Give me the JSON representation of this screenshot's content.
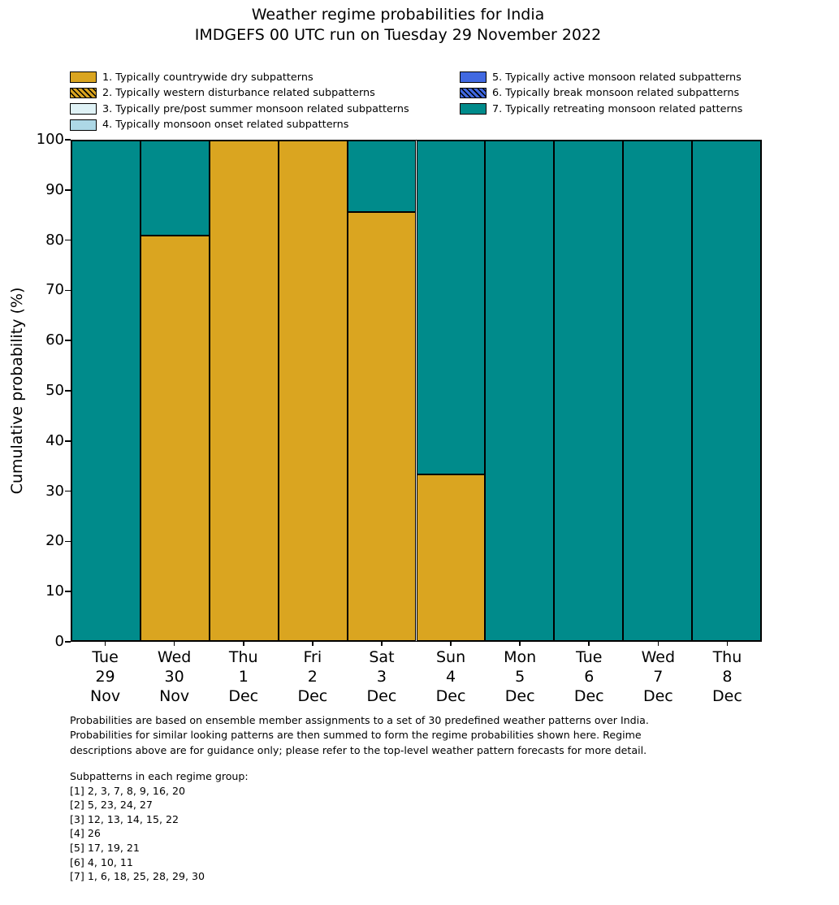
{
  "title": {
    "line1": "Weather regime probabilities for India",
    "line2": "IMDGEFS 00 UTC run on Tuesday 29 November 2022"
  },
  "legend": {
    "columns": [
      {
        "items": [
          {
            "label": "1. Typically countrywide dry subpatterns",
            "color": "#DAA520",
            "hatch": false
          },
          {
            "label": "2. Typically western disturbance related subpatterns",
            "color": "#DAA520",
            "hatch": true
          },
          {
            "label": "3. Typically pre/post summer monsoon related subpatterns",
            "color": "#DFF2F6",
            "hatch": false
          },
          {
            "label": "4. Typically monsoon onset related subpatterns",
            "color": "#ADD8E6",
            "hatch": false
          }
        ]
      },
      {
        "items": [
          {
            "label": "5. Typically active monsoon related subpatterns",
            "color": "#4169E1",
            "hatch": false
          },
          {
            "label": "6. Typically break monsoon related subpatterns",
            "color": "#4169E1",
            "hatch": true
          },
          {
            "label": "7. Typically retreating monsoon related patterns",
            "color": "#008B8B",
            "hatch": false
          }
        ]
      }
    ]
  },
  "chart_data": {
    "type": "bar",
    "stacked": true,
    "title": "Weather regime probabilities for India",
    "subtitle": "IMDGEFS 00 UTC run on Tuesday 29 November 2022",
    "ylabel": "Cumulative probability (%)",
    "ylim": [
      0,
      100
    ],
    "yticks": [
      0,
      10,
      20,
      30,
      40,
      50,
      60,
      70,
      80,
      90,
      100
    ],
    "grid": false,
    "legend_position": "top",
    "categories": [
      "Tue 29 Nov",
      "Wed 30 Nov",
      "Thu 1 Dec",
      "Fri 2 Dec",
      "Sat 3 Dec",
      "Sun 4 Dec",
      "Mon 5 Dec",
      "Tue 6 Dec",
      "Wed 7 Dec",
      "Thu 8 Dec"
    ],
    "category_lines": [
      [
        "Tue",
        "29",
        "Nov"
      ],
      [
        "Wed",
        "30",
        "Nov"
      ],
      [
        "Thu",
        "1",
        "Dec"
      ],
      [
        "Fri",
        "2",
        "Dec"
      ],
      [
        "Sat",
        "3",
        "Dec"
      ],
      [
        "Sun",
        "4",
        "Dec"
      ],
      [
        "Mon",
        "5",
        "Dec"
      ],
      [
        "Tue",
        "6",
        "Dec"
      ],
      [
        "Wed",
        "7",
        "Dec"
      ],
      [
        "Thu",
        "8",
        "Dec"
      ]
    ],
    "series": [
      {
        "name": "1. Typically countrywide dry subpatterns",
        "color": "#DAA520",
        "hatch": false,
        "values": [
          0,
          81,
          100,
          100,
          85.7,
          33.3,
          0,
          0,
          0,
          0
        ]
      },
      {
        "name": "2. Typically western disturbance related subpatterns",
        "color": "#DAA520",
        "hatch": true,
        "values": [
          0,
          0,
          0,
          0,
          0,
          0,
          0,
          0,
          0,
          0
        ]
      },
      {
        "name": "3. Typically pre/post summer monsoon related subpatterns",
        "color": "#DFF2F6",
        "hatch": false,
        "values": [
          0,
          0,
          0,
          0,
          0,
          0,
          0,
          0,
          0,
          0
        ]
      },
      {
        "name": "4. Typically monsoon onset related subpatterns",
        "color": "#ADD8E6",
        "hatch": false,
        "values": [
          0,
          0,
          0,
          0,
          0,
          0,
          0,
          0,
          0,
          0
        ]
      },
      {
        "name": "5. Typically active monsoon related subpatterns",
        "color": "#4169E1",
        "hatch": false,
        "values": [
          0,
          0,
          0,
          0,
          0,
          0,
          0,
          0,
          0,
          0
        ]
      },
      {
        "name": "6. Typically break monsoon related subpatterns",
        "color": "#4169E1",
        "hatch": true,
        "values": [
          0,
          0,
          0,
          0,
          0,
          0,
          0,
          0,
          0,
          0
        ]
      },
      {
        "name": "7. Typically retreating monsoon related patterns",
        "color": "#008B8B",
        "hatch": false,
        "values": [
          100,
          19,
          0,
          0,
          14.3,
          66.7,
          100,
          100,
          100,
          100
        ]
      }
    ]
  },
  "footnotes": {
    "paragraph_lines": [
      "Probabilities are based on ensemble member assignments to a set of 30 predefined weather patterns over India.",
      "Probabilities for similar looking patterns are then summed to form the regime probabilities shown here. Regime",
      "descriptions above are for guidance only; please refer to the top-level weather pattern forecasts for more detail."
    ],
    "subpatterns_header": "Subpatterns in each regime group:",
    "subpatterns_lines": [
      "[1] 2, 3, 7, 8, 9, 16, 20",
      "[2] 5, 23, 24, 27",
      "[3] 12, 13, 14, 15, 22",
      "[4] 26",
      "[5] 17, 19, 21",
      "[6] 4, 10, 11",
      "[7] 1, 6, 18, 25, 28, 29, 30"
    ]
  }
}
